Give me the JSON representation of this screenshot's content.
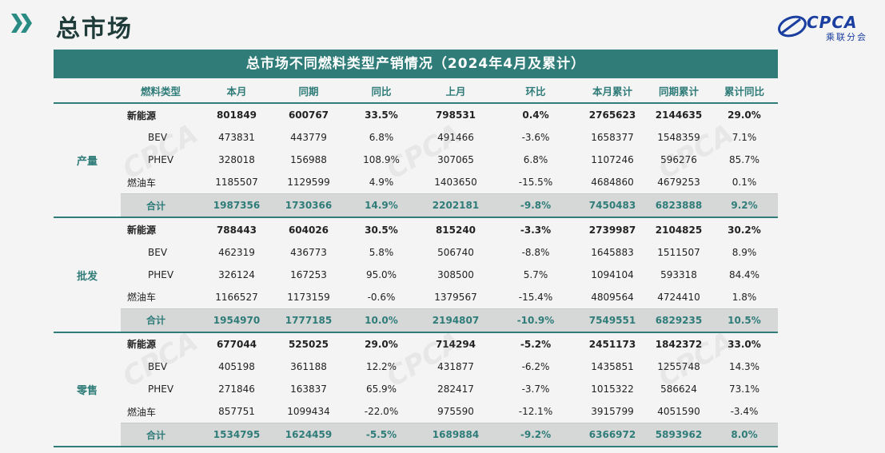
{
  "header": {
    "title": "总市场"
  },
  "logo": {
    "text": "CPCA",
    "sub": "乘联分会"
  },
  "table": {
    "title": "总市场不同燃料类型产销情况（2024年4月及累计）",
    "columns": [
      "燃料类型",
      "本月",
      "同期",
      "同比",
      "上月",
      "环比",
      "本月累计",
      "同期累计",
      "累计同比"
    ],
    "sections": [
      {
        "name": "产量",
        "rows": [
          {
            "type": "新能源",
            "vals": [
              "801849",
              "600767",
              "33.5%",
              "798531",
              "0.4%",
              "2765623",
              "2144635",
              "29.0%"
            ]
          },
          {
            "type": "BEV",
            "vals": [
              "473831",
              "443779",
              "6.8%",
              "491466",
              "-3.6%",
              "1658377",
              "1548359",
              "7.1%"
            ]
          },
          {
            "type": "PHEV",
            "vals": [
              "328018",
              "156988",
              "108.9%",
              "307065",
              "6.8%",
              "1107246",
              "596276",
              "85.7%"
            ]
          },
          {
            "type": "燃油车",
            "vals": [
              "1185507",
              "1129599",
              "4.9%",
              "1403650",
              "-15.5%",
              "4684860",
              "4679253",
              "0.1%"
            ]
          },
          {
            "type": "合计",
            "vals": [
              "1987356",
              "1730366",
              "14.9%",
              "2202181",
              "-9.8%",
              "7450483",
              "6823888",
              "9.2%"
            ]
          }
        ]
      },
      {
        "name": "批发",
        "rows": [
          {
            "type": "新能源",
            "vals": [
              "788443",
              "604026",
              "30.5%",
              "815240",
              "-3.3%",
              "2739987",
              "2104825",
              "30.2%"
            ]
          },
          {
            "type": "BEV",
            "vals": [
              "462319",
              "436773",
              "5.8%",
              "506740",
              "-8.8%",
              "1645883",
              "1511507",
              "8.9%"
            ]
          },
          {
            "type": "PHEV",
            "vals": [
              "326124",
              "167253",
              "95.0%",
              "308500",
              "5.7%",
              "1094104",
              "593318",
              "84.4%"
            ]
          },
          {
            "type": "燃油车",
            "vals": [
              "1166527",
              "1173159",
              "-0.6%",
              "1379567",
              "-15.4%",
              "4809564",
              "4724410",
              "1.8%"
            ]
          },
          {
            "type": "合计",
            "vals": [
              "1954970",
              "1777185",
              "10.0%",
              "2194807",
              "-10.9%",
              "7549551",
              "6829235",
              "10.5%"
            ]
          }
        ]
      },
      {
        "name": "零售",
        "rows": [
          {
            "type": "新能源",
            "vals": [
              "677044",
              "525025",
              "29.0%",
              "714294",
              "-5.2%",
              "2451173",
              "1842372",
              "33.0%"
            ]
          },
          {
            "type": "BEV",
            "vals": [
              "405198",
              "361188",
              "12.2%",
              "431877",
              "-6.2%",
              "1435851",
              "1255748",
              "14.3%"
            ]
          },
          {
            "type": "PHEV",
            "vals": [
              "271846",
              "163837",
              "65.9%",
              "282417",
              "-3.7%",
              "1015322",
              "586624",
              "73.1%"
            ]
          },
          {
            "type": "燃油车",
            "vals": [
              "857751",
              "1099434",
              "-22.0%",
              "975590",
              "-12.1%",
              "3915799",
              "4051590",
              "-3.4%"
            ]
          },
          {
            "type": "合计",
            "vals": [
              "1534795",
              "1624459",
              "-5.5%",
              "1689884",
              "-9.2%",
              "6366972",
              "5893962",
              "8.0%"
            ]
          }
        ]
      }
    ]
  }
}
